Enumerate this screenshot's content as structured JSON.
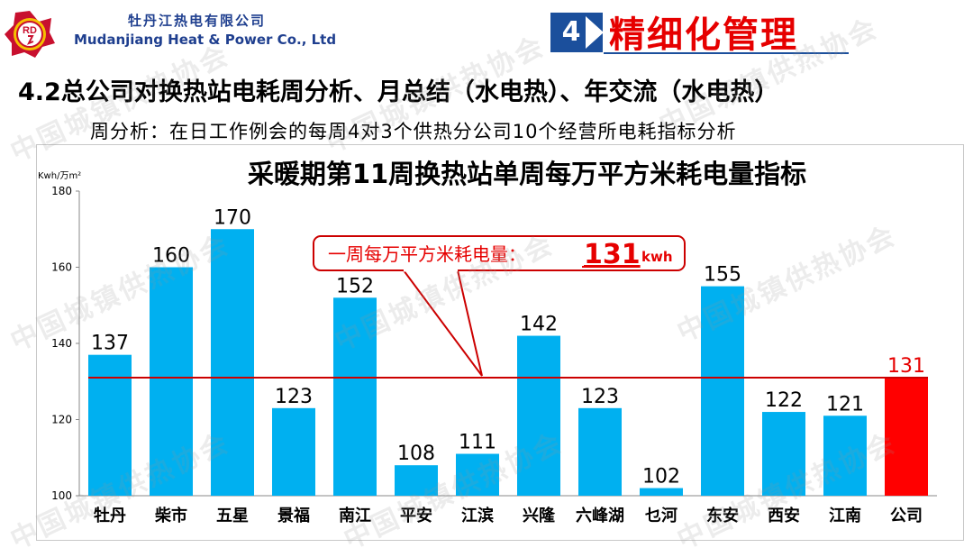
{
  "header": {
    "logo_text": "RD",
    "company_cn": "牡丹江热电有限公司",
    "company_en": "Mudanjiang Heat & Power  Co., Ltd",
    "section_number": "4",
    "section_title": "精细化管理"
  },
  "subtitle": "4.2总公司对换热站电耗周分析、月总结（水电热）、年交流（水电热）",
  "description": "周分析：在日工作例会的每周4对3个供热分公司10个经营所电耗指标分析",
  "watermark": "中国城镇供热协会",
  "colors": {
    "bar": "#00b0f0",
    "highlight_bar": "#ff0000",
    "avg_line": "#cc0000",
    "section_box": "#1b4f9c"
  },
  "chart_data": {
    "type": "bar",
    "title": "采暖期第11周换热站单周每万平方米耗电量指标",
    "ylabel": "Kwh/万m²",
    "ylim": [
      100,
      180
    ],
    "yticks": [
      100,
      120,
      140,
      160,
      180
    ],
    "categories": [
      "牡丹",
      "柴市",
      "五星",
      "景福",
      "南江",
      "平安",
      "江滨",
      "兴隆",
      "六峰湖",
      "乜河",
      "东安",
      "西安",
      "江南",
      "公司"
    ],
    "values": [
      137,
      160,
      170,
      123,
      152,
      108,
      111,
      142,
      123,
      102,
      155,
      122,
      121,
      131
    ],
    "highlight_category": "公司",
    "average_value": 131,
    "annotation": {
      "prefix": "一周每万平方米耗电量：",
      "value": "131",
      "unit": "kwh"
    }
  }
}
